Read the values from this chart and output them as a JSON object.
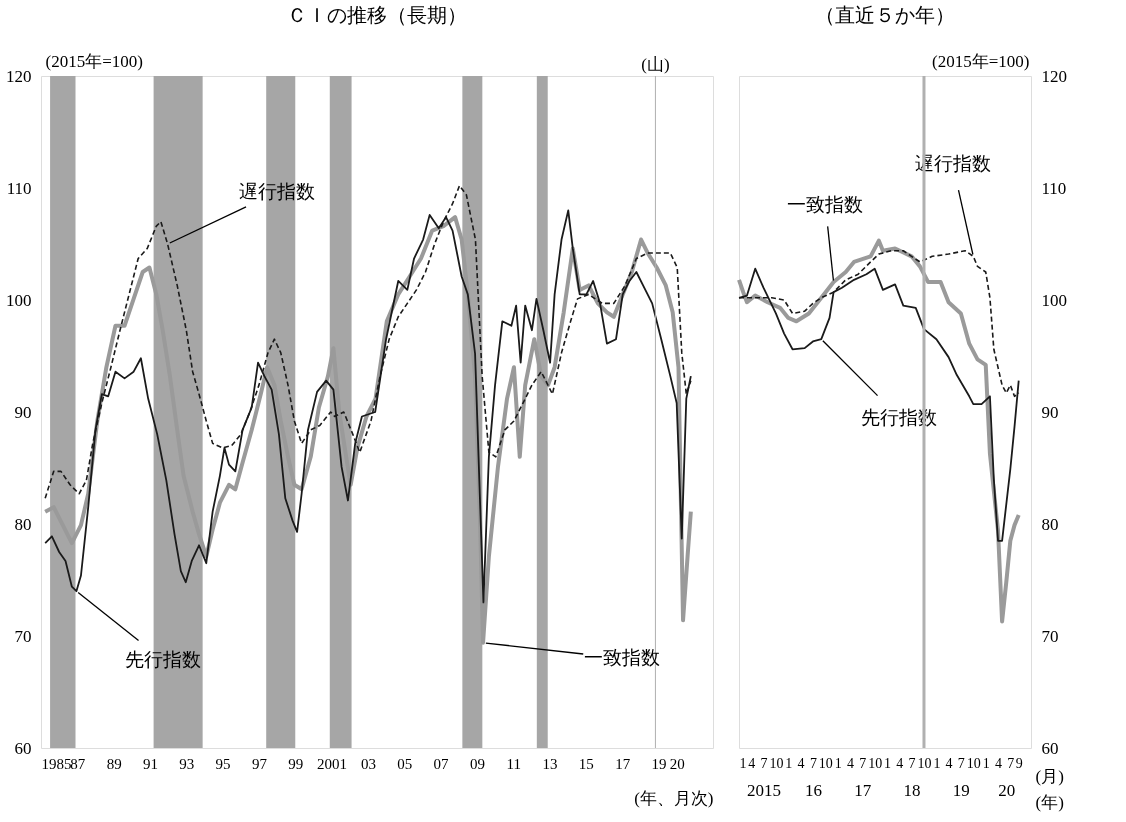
{
  "chart_data": [
    {
      "type": "line",
      "title": "ＣＩの推移（長期）",
      "ylabel": "(2015年=100)",
      "xlabel": "(年、月次)",
      "xlim": [
        1985,
        2022
      ],
      "ylim": [
        60,
        120
      ],
      "yticks": [
        60,
        70,
        80,
        90,
        100,
        110,
        120
      ],
      "xticks": [
        {
          "value": 1985,
          "label": "1985"
        },
        {
          "value": 1987,
          "label": "87"
        },
        {
          "value": 1989,
          "label": "89"
        },
        {
          "value": 1991,
          "label": "91"
        },
        {
          "value": 1993,
          "label": "93"
        },
        {
          "value": 1995,
          "label": "95"
        },
        {
          "value": 1997,
          "label": "97"
        },
        {
          "value": 1999,
          "label": "99"
        },
        {
          "value": 2001,
          "label": "2001"
        },
        {
          "value": 2003,
          "label": "03"
        },
        {
          "value": 2005,
          "label": "05"
        },
        {
          "value": 2007,
          "label": "07"
        },
        {
          "value": 2009,
          "label": "09"
        },
        {
          "value": 2011,
          "label": "11"
        },
        {
          "value": 2013,
          "label": "13"
        },
        {
          "value": 2015,
          "label": "15"
        },
        {
          "value": 2017,
          "label": "17"
        },
        {
          "value": 2019,
          "label": "19"
        },
        {
          "value": 2020,
          "label": "20"
        }
      ],
      "grid": false,
      "series": [
        {
          "color": "#1a1a1a",
          "line_style": "solid",
          "x": [
            1985.23,
            1985.6,
            1986.0,
            1986.35,
            1986.7,
            1986.95,
            1987.2,
            1987.6,
            1988.0,
            1988.35,
            1988.7,
            1989.1,
            1989.6,
            1990.1,
            1990.5,
            1990.9,
            1991.4,
            1991.9,
            1992.35,
            1992.7,
            1992.97,
            1993.3,
            1993.7,
            1994.1,
            1994.45,
            1994.85,
            1995.1,
            1995.35,
            1995.7,
            1996.1,
            1996.6,
            1996.95,
            1997.3,
            1997.7,
            1998.1,
            1998.45,
            1998.85,
            1999.1,
            1999.35,
            1999.7,
            2000.2,
            2000.7,
            2001.1,
            2001.55,
            2001.9,
            2002.3,
            2002.67,
            2003.4,
            2004.0,
            2004.67,
            2005.17,
            2005.54,
            2006.04,
            2006.4,
            2006.9,
            2007.3,
            2007.66,
            2008.16,
            2008.5,
            2008.9,
            2009.36,
            2009.66,
            2010.0,
            2010.4,
            2010.9,
            2011.16,
            2011.41,
            2011.66,
            2012.03,
            2012.28,
            2012.66,
            2013.03,
            2013.28,
            2013.66,
            2014.03,
            2014.28,
            2014.66,
            2015.03,
            2015.4,
            2015.78,
            2016.16,
            2016.66,
            2017.03,
            2017.4,
            2017.78,
            2018.15,
            2018.65,
            2019.15,
            2019.65,
            2020.0,
            2020.28,
            2020.53,
            2020.78
          ],
          "values": [
            78.3,
            78.9,
            77.5,
            76.7,
            74.4,
            74.0,
            75.4,
            81.5,
            88.4,
            91.6,
            91.4,
            93.6,
            93.0,
            93.6,
            94.8,
            91.2,
            88.0,
            83.9,
            79.1,
            75.8,
            74.8,
            76.7,
            78.1,
            76.5,
            81.1,
            84.3,
            86.8,
            85.3,
            84.7,
            88.4,
            90.4,
            94.4,
            93.2,
            92.0,
            88.0,
            82.3,
            80.3,
            79.3,
            82.7,
            88.4,
            91.8,
            92.8,
            92.0,
            85.1,
            82.1,
            87.2,
            89.6,
            90.0,
            96.5,
            101.7,
            100.9,
            103.7,
            105.4,
            107.6,
            106.4,
            107.4,
            106.2,
            102.1,
            100.5,
            95.2,
            73.0,
            86.0,
            92.4,
            98.1,
            97.7,
            99.5,
            94.4,
            99.5,
            97.3,
            100.1,
            97.3,
            94.4,
            100.5,
            105.4,
            108.0,
            104.6,
            100.5,
            100.5,
            101.7,
            99.7,
            96.1,
            96.5,
            100.5,
            101.7,
            102.5,
            101.3,
            99.7,
            96.5,
            93.2,
            90.8,
            78.7,
            91.2,
            93.2
          ]
        },
        {
          "color": "#9a9a9a",
          "line_style": "solid",
          "x": [
            1985.23,
            1985.7,
            1986.2,
            1986.7,
            1987.2,
            1987.6,
            1988.1,
            1988.6,
            1989.1,
            1989.6,
            1990.1,
            1990.6,
            1990.97,
            1991.35,
            1991.7,
            1992.1,
            1992.5,
            1992.85,
            1993.35,
            1993.7,
            1994.1,
            1994.45,
            1994.85,
            1995.35,
            1995.7,
            1996.1,
            1996.6,
            1997.1,
            1997.45,
            1997.85,
            1998.2,
            1998.6,
            1998.95,
            1999.35,
            1999.85,
            2000.3,
            2000.8,
            2001.1,
            2001.42,
            2001.8,
            2002.05,
            2002.42,
            2002.92,
            2003.42,
            2004.04,
            2004.67,
            2005.3,
            2005.92,
            2006.54,
            2007.16,
            2007.8,
            2008.16,
            2008.5,
            2008.9,
            2009.16,
            2009.34,
            2009.66,
            2010.16,
            2010.66,
            2011.04,
            2011.36,
            2011.66,
            2012.16,
            2012.54,
            2012.92,
            2013.28,
            2013.78,
            2014.28,
            2014.66,
            2015.15,
            2015.66,
            2016.16,
            2016.54,
            2017.03,
            2017.53,
            2018.04,
            2018.4,
            2018.9,
            2019.4,
            2019.78,
            2020.1,
            2020.35,
            2020.6,
            2020.78
          ],
          "values": [
            81.1,
            81.5,
            79.9,
            78.3,
            79.9,
            82.7,
            89.2,
            94.0,
            97.7,
            97.7,
            100.1,
            102.5,
            102.9,
            100.5,
            97.3,
            93.2,
            88.4,
            84.3,
            81.1,
            79.1,
            77.1,
            79.5,
            81.9,
            83.5,
            83.1,
            85.5,
            88.4,
            91.6,
            94.0,
            92.4,
            89.2,
            86.0,
            83.5,
            83.1,
            86.0,
            90.4,
            93.2,
            95.7,
            90.0,
            86.0,
            83.5,
            86.8,
            89.6,
            91.2,
            98.1,
            100.5,
            102.1,
            103.7,
            106.2,
            106.6,
            107.4,
            105.4,
            100.5,
            93.2,
            81.1,
            69.4,
            77.1,
            85.1,
            91.2,
            94.0,
            86.0,
            92.4,
            96.5,
            93.2,
            92.4,
            94.0,
            98.9,
            104.6,
            100.9,
            101.3,
            99.7,
            98.9,
            98.5,
            100.5,
            102.5,
            105.4,
            104.2,
            102.9,
            101.3,
            98.9,
            94.0,
            71.4,
            77.1,
            81.1
          ]
        },
        {
          "color": "#1a1a1a",
          "line_style": "dashed",
          "x": [
            1985.23,
            1985.7,
            1986.1,
            1986.6,
            1987.1,
            1987.5,
            1987.85,
            1988.35,
            1988.85,
            1989.35,
            1989.85,
            1990.35,
            1990.85,
            1991.35,
            1991.6,
            1991.97,
            1992.5,
            1993.0,
            1993.35,
            1993.7,
            1994.1,
            1994.45,
            1995.0,
            1995.5,
            1996.0,
            1996.5,
            1997.0,
            1997.5,
            1997.85,
            1998.2,
            1998.6,
            1998.95,
            1999.35,
            1999.85,
            2000.35,
            2000.95,
            2001.17,
            2001.67,
            2002.17,
            2002.55,
            2003.17,
            2003.67,
            2004.17,
            2004.67,
            2005.17,
            2005.67,
            2006.17,
            2006.67,
            2007.16,
            2007.66,
            2008.04,
            2008.42,
            2008.92,
            2009.29,
            2009.66,
            2010.04,
            2010.54,
            2011.04,
            2011.54,
            2012.03,
            2012.54,
            2013.16,
            2013.66,
            2014.16,
            2014.54,
            2015.15,
            2015.9,
            2016.54,
            2017.16,
            2017.78,
            2018.4,
            2018.9,
            2019.65,
            2020.03,
            2020.28,
            2020.53,
            2020.78
          ],
          "values": [
            82.3,
            84.7,
            84.7,
            83.5,
            82.7,
            83.9,
            87.2,
            90.8,
            94.0,
            97.3,
            100.5,
            103.7,
            104.6,
            106.6,
            107.0,
            105.0,
            101.3,
            97.3,
            93.6,
            91.6,
            89.2,
            87.2,
            86.8,
            87.0,
            88.0,
            90.0,
            92.4,
            95.3,
            96.5,
            95.3,
            92.4,
            89.2,
            87.2,
            88.4,
            88.8,
            90.0,
            89.6,
            90.0,
            88.0,
            86.4,
            89.2,
            93.2,
            96.5,
            98.5,
            99.7,
            100.9,
            102.5,
            105.0,
            107.0,
            108.6,
            110.2,
            109.4,
            105.4,
            93.2,
            86.4,
            86.0,
            88.4,
            89.2,
            90.8,
            92.4,
            93.6,
            91.6,
            95.3,
            98.1,
            100.1,
            100.5,
            99.7,
            99.7,
            101.3,
            103.7,
            104.2,
            104.2,
            104.2,
            102.9,
            95.3,
            91.6,
            92.8
          ]
        }
      ],
      "bands": [
        {
          "axis": "x",
          "from": 1985.5,
          "to": 1986.9,
          "color": "#a6a6a6"
        },
        {
          "axis": "x",
          "from": 1991.2,
          "to": 1993.9,
          "color": "#a6a6a6"
        },
        {
          "axis": "x",
          "from": 1997.4,
          "to": 1999.0,
          "color": "#a6a6a6"
        },
        {
          "axis": "x",
          "from": 2000.9,
          "to": 2002.1,
          "color": "#a6a6a6"
        },
        {
          "axis": "x",
          "from": 2008.2,
          "to": 2009.3,
          "color": "#a6a6a6"
        },
        {
          "axis": "x",
          "from": 2012.3,
          "to": 2012.9,
          "color": "#a6a6a6"
        }
      ],
      "ref_lines": [
        {
          "axis": "x",
          "value": 2018.83,
          "label": "(山)",
          "color": "#b0b0b0"
        }
      ],
      "annotations": [
        {
          "text": "遅行指数",
          "x": 1991.97,
          "y": 105.0
        },
        {
          "text": "先行指数",
          "x": 1986.95,
          "y": 74.0
        },
        {
          "text": "一致指数",
          "x": 2009.34,
          "y": 69.4
        }
      ]
    },
    {
      "type": "line",
      "title": "（直近５か年）",
      "ylabel": "(2015年=100)",
      "xlabel": "(月)",
      "x2label": "(年)",
      "xlim": [
        "2015-01",
        "2020-12"
      ],
      "x2lim": [
        "2015-01",
        "2020-12"
      ],
      "ylim": [
        60,
        120
      ],
      "yticks": [
        60,
        70,
        80,
        90,
        100,
        110,
        120
      ],
      "xticks": [
        {
          "value": "2015-01",
          "label": "1"
        },
        {
          "value": "2015-04",
          "label": "4"
        },
        {
          "value": "2015-07",
          "label": "7"
        },
        {
          "value": "2015-10",
          "label": "10"
        },
        {
          "value": "2016-01",
          "label": "1"
        },
        {
          "value": "2016-04",
          "label": "4"
        },
        {
          "value": "2016-07",
          "label": "7"
        },
        {
          "value": "2016-10",
          "label": "10"
        },
        {
          "value": "2017-01",
          "label": "1"
        },
        {
          "value": "2017-04",
          "label": "4"
        },
        {
          "value": "2017-07",
          "label": "7"
        },
        {
          "value": "2017-10",
          "label": "10"
        },
        {
          "value": "2018-01",
          "label": "1"
        },
        {
          "value": "2018-04",
          "label": "4"
        },
        {
          "value": "2018-07",
          "label": "7"
        },
        {
          "value": "2018-10",
          "label": "10"
        },
        {
          "value": "2019-01",
          "label": "1"
        },
        {
          "value": "2019-04",
          "label": "4"
        },
        {
          "value": "2019-07",
          "label": "7"
        },
        {
          "value": "2019-10",
          "label": "10"
        },
        {
          "value": "2020-01",
          "label": "1"
        },
        {
          "value": "2020-04",
          "label": "4"
        },
        {
          "value": "2020-07",
          "label": "7"
        },
        {
          "value": "2020-09",
          "label": "9"
        }
      ],
      "x2ticks": [
        {
          "value": "2015-07",
          "label": "2015"
        },
        {
          "value": "2016-07",
          "label": "16"
        },
        {
          "value": "2017-07",
          "label": "17"
        },
        {
          "value": "2018-07",
          "label": "18"
        },
        {
          "value": "2019-07",
          "label": "19"
        },
        {
          "value": "2020-06",
          "label": "20"
        }
      ],
      "grid": false,
      "series": [
        {
          "color": "#1a1a1a",
          "line_style": "solid",
          "x": [
            "2015-01",
            "2015-03",
            "2015-05",
            "2015-07",
            "2015-10",
            "2015-12",
            "2016-02",
            "2016-05",
            "2016-07",
            "2016-09",
            "2016-11",
            "2016-12",
            "2017-02",
            "2017-05",
            "2017-08",
            "2017-10",
            "2017-12",
            "2018-03",
            "2018-05",
            "2018-08",
            "2018-10",
            "2019-01",
            "2019-04",
            "2019-06",
            "2019-09",
            "2019-10",
            "2019-12",
            "2020-02",
            "2020-03",
            "2020-04",
            "2020-05",
            "2020-07",
            "2020-08",
            "2020-09"
          ],
          "values": [
            100.2,
            100.4,
            102.8,
            101.1,
            98.8,
            97.0,
            95.6,
            95.7,
            96.3,
            96.5,
            98.4,
            100.7,
            101.1,
            101.8,
            102.3,
            102.8,
            100.9,
            101.4,
            99.5,
            99.3,
            97.4,
            96.5,
            94.9,
            93.3,
            91.4,
            90.7,
            90.7,
            91.4,
            84.0,
            78.5,
            78.5,
            84.9,
            88.7,
            92.8
          ]
        },
        {
          "color": "#9a9a9a",
          "line_style": "solid",
          "x": [
            "2015-01",
            "2015-02",
            "2015-03",
            "2015-05",
            "2015-08",
            "2015-11",
            "2016-01",
            "2016-03",
            "2016-06",
            "2016-09",
            "2016-12",
            "2017-03",
            "2017-05",
            "2017-09",
            "2017-11",
            "2017-12",
            "2018-03",
            "2018-07",
            "2018-09",
            "2018-11",
            "2019-02",
            "2019-04",
            "2019-07",
            "2019-09",
            "2019-11",
            "2020-01",
            "2020-02",
            "2020-04",
            "2020-05",
            "2020-06",
            "2020-07",
            "2020-08",
            "2020-09"
          ],
          "values": [
            101.8,
            100.7,
            99.8,
            100.4,
            99.8,
            99.3,
            98.4,
            98.1,
            98.8,
            100.2,
            101.6,
            102.5,
            103.4,
            103.9,
            105.3,
            104.4,
            104.6,
            103.9,
            103.0,
            101.6,
            101.6,
            99.8,
            98.8,
            96.1,
            94.7,
            94.2,
            86.3,
            79.4,
            71.3,
            74.8,
            78.5,
            79.9,
            80.8
          ]
        },
        {
          "color": "#1a1a1a",
          "line_style": "dashed",
          "x": [
            "2015-01",
            "2015-04",
            "2015-09",
            "2015-12",
            "2016-02",
            "2016-05",
            "2016-07",
            "2016-09",
            "2016-12",
            "2017-03",
            "2017-06",
            "2017-09",
            "2017-11",
            "2018-02",
            "2018-05",
            "2018-07",
            "2018-09",
            "2018-12",
            "2019-04",
            "2019-08",
            "2019-10",
            "2019-11",
            "2020-01",
            "2020-02",
            "2020-03",
            "2020-05",
            "2020-06",
            "2020-07",
            "2020-08",
            "2020-09"
          ],
          "values": [
            100.2,
            100.2,
            100.2,
            100.0,
            98.8,
            99.0,
            99.7,
            100.2,
            100.7,
            101.8,
            102.3,
            103.4,
            104.1,
            104.4,
            104.4,
            103.9,
            103.4,
            103.9,
            104.1,
            104.4,
            103.9,
            103.0,
            102.5,
            100.2,
            95.6,
            92.4,
            91.7,
            92.4,
            91.4,
            91.7
          ]
        }
      ],
      "ref_lines": [
        {
          "axis": "x2",
          "value": "2018-10",
          "label": null,
          "color": "#b0b0b0"
        }
      ],
      "annotations": [
        {
          "text": "遅行指数",
          "x": "2019-10",
          "y": 103.9
        },
        {
          "text": "一致指数",
          "x": "2016-12",
          "y": 101.6
        },
        {
          "text": "先行指数",
          "x": "2016-09",
          "y": 96.5
        }
      ]
    }
  ]
}
